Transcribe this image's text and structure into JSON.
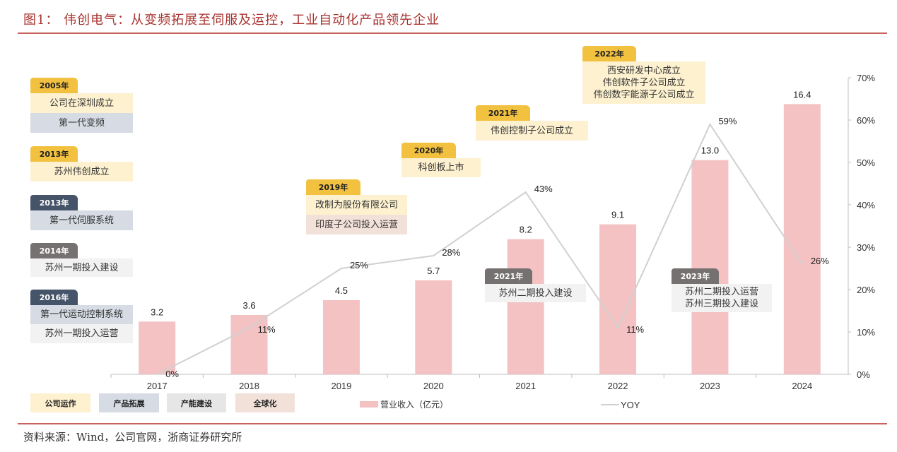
{
  "title": "图1：  伟创电气：从变频拓展至伺服及运控，工业自动化产品领先企业",
  "source": "资料来源：Wind，公司官网，浙商证券研究所",
  "colors": {
    "bar": "#f4c2c2",
    "line": "#d0d0d0",
    "accent": "#a8322e"
  },
  "legend_categories": [
    "公司运作",
    "产品拓展",
    "产能建设",
    "全球化"
  ],
  "annotations": [
    {
      "year": "2005年",
      "items": [
        "公司在深圳成立",
        "第一代变频"
      ]
    },
    {
      "year": "2013年",
      "items": [
        "苏州伟创成立"
      ]
    },
    {
      "year": "2013年",
      "items": [
        "第一代伺服系统"
      ]
    },
    {
      "year": "2014年",
      "items": [
        "苏州一期投入建设"
      ]
    },
    {
      "year": "2016年",
      "items": [
        "第一代运动控制系统",
        "苏州一期投入运营"
      ]
    },
    {
      "year": "2019年",
      "items": [
        "改制为股份有限公司",
        "印度子公司投入运营"
      ]
    },
    {
      "year": "2020年",
      "items": [
        "科创板上市"
      ]
    },
    {
      "year": "2021年",
      "items": [
        "伟创控制子公司成立"
      ]
    },
    {
      "year": "2022年",
      "items": [
        "西安研发中心成立",
        "伟创软件子公司成立",
        "伟创数字能源子公司成立"
      ]
    },
    {
      "year": "2021年",
      "items": [
        "苏州二期投入建设"
      ]
    },
    {
      "year": "2023年",
      "items": [
        "苏州二期投入运营",
        "苏州三期投入建设"
      ]
    }
  ],
  "chart_data": {
    "type": "bar",
    "categories": [
      "2017",
      "2018",
      "2019",
      "2020",
      "2021",
      "2022",
      "2023",
      "2024"
    ],
    "series": [
      {
        "name": "营业收入（亿元）",
        "type": "bar",
        "values": [
          3.2,
          3.6,
          4.5,
          5.7,
          8.2,
          9.1,
          13.0,
          16.4
        ],
        "labels": [
          "3.2",
          "3.6",
          "4.5",
          "5.7",
          "8.2",
          "9.1",
          "13.0",
          "16.4"
        ]
      },
      {
        "name": "YOY",
        "type": "line",
        "axis": "right",
        "values": [
          0,
          11,
          25,
          28,
          43,
          11,
          59,
          26
        ],
        "labels": [
          "0%",
          "11%",
          "25%",
          "28%",
          "43%",
          "11%",
          "59%",
          "26%"
        ]
      }
    ],
    "left_ylim": [
      0,
      18
    ],
    "right_ylim": [
      0,
      70
    ],
    "right_ticks": [
      "0%",
      "10%",
      "20%",
      "30%",
      "40%",
      "50%",
      "60%",
      "70%"
    ],
    "legend_position": "bottom"
  }
}
